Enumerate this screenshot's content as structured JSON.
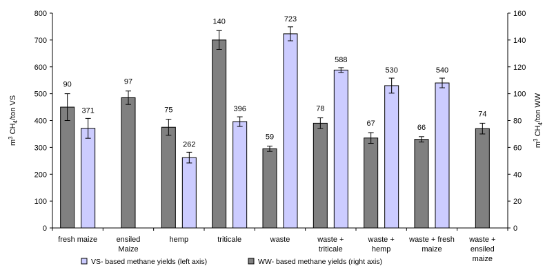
{
  "chart_data": {
    "type": "bar",
    "categories": [
      [
        "fresh maize"
      ],
      [
        "ensiled",
        "Maize"
      ],
      [
        "hemp"
      ],
      [
        "triticale"
      ],
      [
        "waste"
      ],
      [
        "waste +",
        "triticale"
      ],
      [
        "waste +",
        "hemp"
      ],
      [
        "waste + fresh",
        "maize"
      ],
      [
        "waste +",
        "ensiled",
        "maize"
      ]
    ],
    "series": [
      {
        "name": "WW- based methane yields (right axis)",
        "axis": "right",
        "color": "#808080",
        "values": [
          90,
          97,
          75,
          140,
          59,
          78,
          67,
          66,
          74
        ],
        "errors": [
          10,
          5,
          6,
          7,
          2,
          4,
          4,
          2,
          4
        ]
      },
      {
        "name": "VS- based methane yields (left axis)",
        "axis": "left",
        "color": "#ccccff",
        "values": [
          371,
          null,
          262,
          396,
          723,
          588,
          530,
          540,
          null
        ],
        "errors": [
          37,
          null,
          20,
          18,
          26,
          9,
          28,
          18,
          null
        ]
      }
    ],
    "yleft": {
      "label_prefix": "m",
      "label_sup": "3",
      "label_main": " CH",
      "label_sub": "4",
      "label_suffix": "/ton VS",
      "lim": [
        0,
        800
      ],
      "ticks": [
        0,
        100,
        200,
        300,
        400,
        500,
        600,
        700,
        800
      ]
    },
    "yright": {
      "label_prefix": "m",
      "label_sup": "3",
      "label_main": " CH",
      "label_sub": "4",
      "label_suffix": "/ton WW",
      "lim": [
        0,
        160
      ],
      "ticks": [
        0,
        20,
        40,
        60,
        80,
        100,
        120,
        140,
        160
      ]
    },
    "legend": {
      "placement": "bottom",
      "items": [
        {
          "label": "VS- based methane yields (left axis)",
          "color": "#ccccff"
        },
        {
          "label": "WW- based methane yields (right axis)",
          "color": "#808080"
        }
      ]
    },
    "grid": false
  }
}
